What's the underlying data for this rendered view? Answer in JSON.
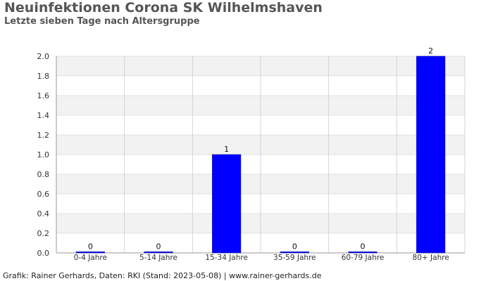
{
  "title": "Neuinfektionen Corona SK Wilhelmshaven",
  "subtitle": "Letzte sieben Tage nach Altersgruppe",
  "footer": "Grafik: Rainer Gerhards, Daten: RKI (Stand: 2023-05-08) | www.rainer-gerhards.de",
  "colors": {
    "bar": "#0000ff",
    "band": "#f2f2f2",
    "grid": "#cccccc",
    "text": "#333333"
  },
  "chart_data": {
    "type": "bar",
    "categories": [
      "0-4 Jahre",
      "5-14 Jahre",
      "15-34 Jahre",
      "35-59 Jahre",
      "60-79 Jahre",
      "80+ Jahre"
    ],
    "values": [
      0,
      0,
      1,
      0,
      0,
      2
    ],
    "data_labels": [
      "0",
      "0",
      "1",
      "0",
      "0",
      "2"
    ],
    "ylim": [
      0,
      2.0
    ],
    "yticks": [
      "0.0",
      "0.2",
      "0.4",
      "0.6",
      "0.8",
      "1.0",
      "1.2",
      "1.4",
      "1.6",
      "1.8",
      "2.0"
    ],
    "xlabel": "",
    "ylabel": "",
    "grid": true,
    "legend": false
  }
}
